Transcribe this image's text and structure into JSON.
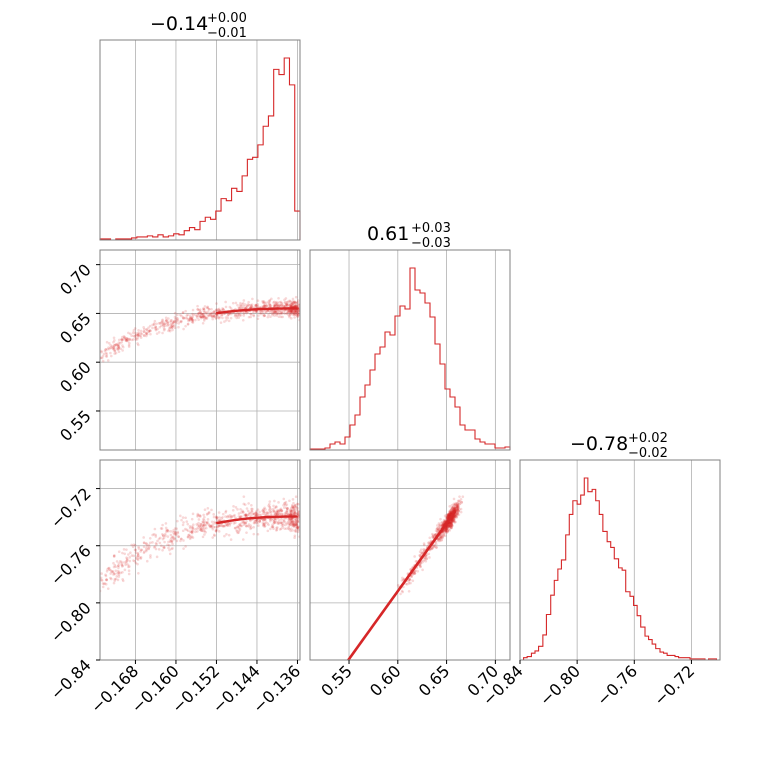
{
  "chart_data": {
    "type": "scatter",
    "figure": "corner-plot",
    "color": "#d62728",
    "grid": true,
    "params": [
      {
        "median": -0.1405,
        "title": "−0.14",
        "err_plus": "+0.00",
        "err_minus": "−0.01",
        "range": [
          -0.175,
          -0.1355
        ],
        "ticks": [
          -0.168,
          -0.16,
          -0.152,
          -0.144,
          -0.136
        ],
        "tick_labels": [
          "−0.168",
          "−0.160",
          "−0.152",
          "−0.144",
          "−0.136"
        ],
        "hist_counts": [
          1,
          1,
          0,
          1,
          1,
          1,
          2,
          3,
          3,
          4,
          3,
          5,
          3,
          4,
          6,
          5,
          9,
          12,
          10,
          18,
          22,
          20,
          28,
          40,
          38,
          50,
          47,
          62,
          78,
          80,
          92,
          110,
          120,
          165,
          160,
          176,
          150,
          28
        ]
      },
      {
        "median": 0.612,
        "title": "0.61",
        "err_plus": "+0.03",
        "err_minus": "−0.03",
        "range": [
          0.51,
          0.715
        ],
        "ticks": [
          0.55,
          0.6,
          0.65,
          0.7
        ],
        "tick_labels": [
          "0.55",
          "0.60",
          "0.65",
          "0.70"
        ],
        "hist_counts": [
          1,
          1,
          1,
          2,
          6,
          8,
          6,
          13,
          25,
          35,
          53,
          65,
          80,
          96,
          103,
          118,
          115,
          134,
          144,
          141,
          182,
          160,
          157,
          147,
          133,
          106,
          86,
          61,
          53,
          43,
          25,
          20,
          20,
          11,
          8,
          6,
          6,
          2,
          2,
          3
        ]
      },
      {
        "median": -0.7805,
        "title": "−0.78",
        "err_plus": "+0.02",
        "err_minus": "−0.02",
        "range": [
          -0.84,
          -0.7
        ]
      }
    ],
    "hist_bin_edges_d": [
      -0.8375,
      -0.835,
      -0.832,
      -0.8295,
      -0.827,
      -0.824,
      -0.8215,
      -0.8185,
      -0.816,
      -0.8135,
      -0.811,
      -0.808,
      -0.8055,
      -0.803,
      -0.8,
      -0.7975,
      -0.795,
      -0.7925,
      -0.7895,
      -0.787,
      -0.7845,
      -0.782,
      -0.779,
      -0.7765,
      -0.774,
      -0.771,
      -0.7685,
      -0.766,
      -0.763,
      -0.7605,
      -0.758,
      -0.7555,
      -0.7525,
      -0.75,
      -0.7475,
      -0.745,
      -0.742,
      -0.7395,
      -0.737,
      -0.734,
      -0.7315,
      -0.729,
      -0.7265,
      -0.7235,
      -0.721,
      -0.7185,
      -0.7155,
      -0.713,
      -0.7105,
      -0.708,
      -0.705,
      -0.7025,
      -0.7
    ],
    "hist_counts_d": [
      2,
      3,
      6,
      8,
      12,
      22,
      40,
      57,
      70,
      80,
      88,
      110,
      128,
      140,
      137,
      145,
      160,
      148,
      150,
      140,
      128,
      113,
      104,
      99,
      89,
      81,
      79,
      60,
      56,
      48,
      39,
      29,
      21,
      18,
      14,
      10,
      7,
      6,
      4,
      4,
      3,
      2,
      2,
      2,
      1,
      1,
      1,
      1,
      0,
      1,
      1,
      0
    ],
    "pair_ticks": {
      "y_row1": [
        0.55,
        0.6,
        0.65,
        0.7
      ],
      "y_row1_labels": [
        "0.55",
        "0.60",
        "0.65",
        "0.70"
      ],
      "y_row2": [
        -0.84,
        -0.8,
        -0.76,
        -0.72
      ],
      "y_row2_labels": [
        "−0.84",
        "−0.80",
        "−0.76",
        "−0.72"
      ],
      "x_col2": [
        -0.84,
        -0.8,
        -0.76,
        -0.72
      ],
      "x_col2_labels": [
        "−0.84",
        "−0.80",
        "−0.76",
        "−0.72"
      ]
    },
    "relation": {
      "c_from_a": {
        "a0": -0.1355,
        "scale": 0.9,
        "power": 2.6,
        "c_top": 0.655,
        "c_bottom": 0.51
      },
      "d_from_b": {
        "slope": 0.95,
        "at_b": 0.612,
        "at_d": -0.7805
      }
    }
  }
}
